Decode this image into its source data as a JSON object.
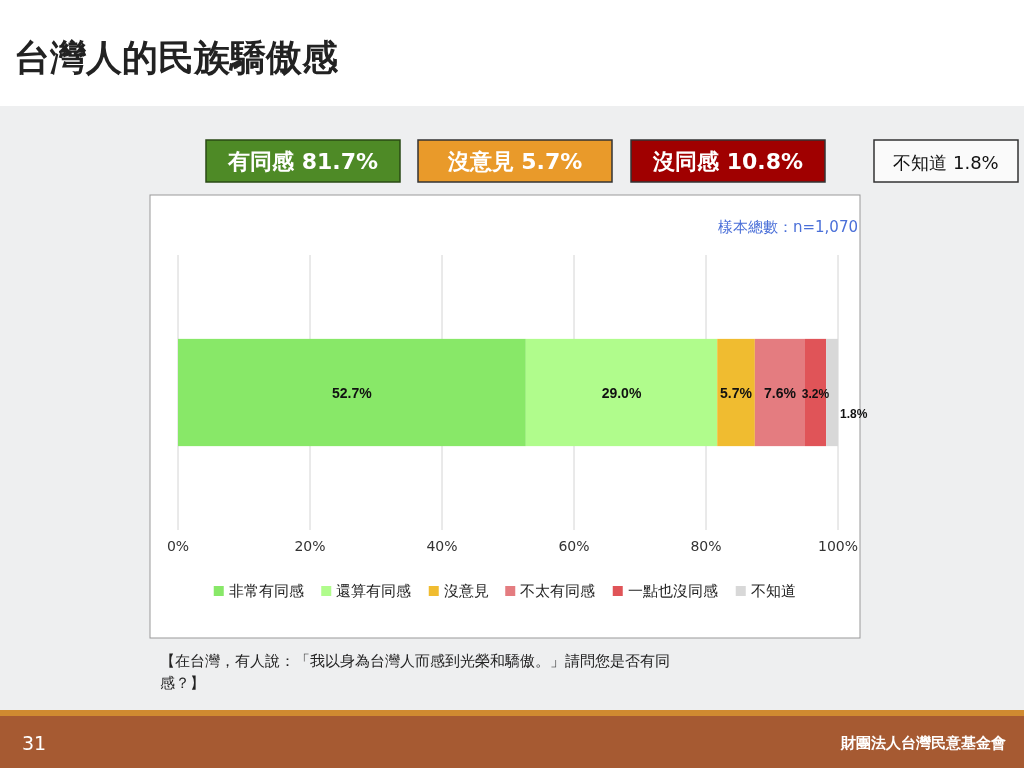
{
  "chart_data": {
    "type": "bar",
    "orientation": "horizontal",
    "stacked": true,
    "title": "台灣人的民族驕傲感",
    "categories": [
      null
    ],
    "series": [
      {
        "name": "非常有同感",
        "color": "#88e868",
        "values": [
          52.7
        ],
        "value_labels": [
          "52.7%"
        ]
      },
      {
        "name": "還算有同感",
        "color": "#b0fc8c",
        "values": [
          29.0
        ],
        "value_labels": [
          "29.0%"
        ]
      },
      {
        "name": "沒意見",
        "color": "#f0bc30",
        "values": [
          5.7
        ],
        "value_labels": [
          "5.7%"
        ]
      },
      {
        "name": "不太有同感",
        "color": "#e47c80",
        "values": [
          7.6
        ],
        "value_labels": [
          "7.6%"
        ]
      },
      {
        "name": "一點也沒同感",
        "color": "#e05458",
        "values": [
          3.2
        ],
        "value_labels": [
          "3.2%"
        ]
      },
      {
        "name": "不知道",
        "color": "#d8d8d8",
        "values": [
          1.8
        ],
        "value_labels": [
          "1.8%"
        ]
      }
    ],
    "xlim": [
      0,
      100
    ],
    "xticks": [
      {
        "value": 0,
        "label": "0%"
      },
      {
        "value": 20,
        "label": "20%"
      },
      {
        "value": 40,
        "label": "40%"
      },
      {
        "value": 60,
        "label": "60%"
      },
      {
        "value": 80,
        "label": "80%"
      },
      {
        "value": 100,
        "label": "100%"
      }
    ],
    "grid": "x",
    "legend": "bottom",
    "annotations": [
      "有同感 81.7%",
      "沒意見 5.7%",
      "沒同感 10.8%",
      "不知道 1.8%",
      "樣本總數：n=1,070",
      "【在台灣，有人說：「我以身為台灣人而感到光榮和驕傲。」請問您是否有同感？】",
      "31",
      "財團法人台灣民意基金會"
    ]
  }
}
